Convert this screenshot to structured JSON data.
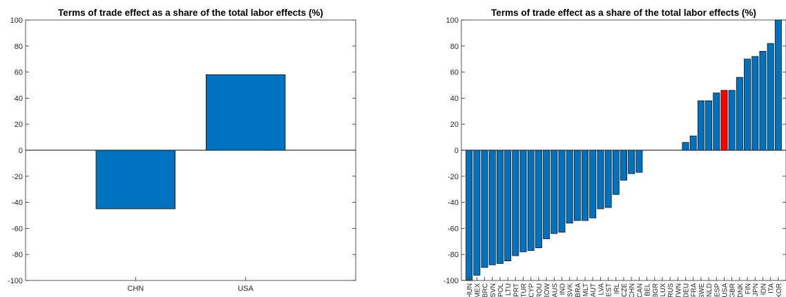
{
  "chart_data": [
    {
      "type": "bar",
      "title": "Terms of trade effect as a share of the total labor effects (%)",
      "xlabel": "",
      "ylabel": "",
      "ylim": [
        -100,
        100
      ],
      "yticks": [
        "100",
        "80",
        "60",
        "40",
        "20",
        "0",
        "-20",
        "-40",
        "-60",
        "-80",
        "-100"
      ],
      "categories": [
        "CHN",
        "USA"
      ],
      "values": [
        -45,
        58
      ],
      "bar_color": "#0072BD"
    },
    {
      "type": "bar",
      "title": "Terms of trade effect as a share of the total labor effects (%)",
      "xlabel": "",
      "ylabel": "",
      "ylim": [
        -100,
        100
      ],
      "yticks": [
        "100",
        "80",
        "60",
        "40",
        "20",
        "0",
        "-20",
        "-40",
        "-60",
        "-80",
        "-100"
      ],
      "categories": [
        "HUN",
        "MEX",
        "BRC",
        "SVN",
        "POL",
        "LTU",
        "PRT",
        "TUR",
        "CYP",
        "ROU",
        "ROW",
        "AUS",
        "IND",
        "SVK",
        "BRA",
        "MLT",
        "AUT",
        "LVA",
        "EST",
        "IRL",
        "CZE",
        "CHN",
        "CAN",
        "BEL",
        "BGR",
        "LUX",
        "RUS",
        "TWN",
        "DEU",
        "FRA",
        "SWE",
        "NLD",
        "ESP",
        "USA",
        "GBR",
        "DNK",
        "FIN",
        "JPN",
        "IDN",
        "ITA",
        "KOR"
      ],
      "values": [
        -100,
        -96,
        -90,
        -88,
        -87,
        -85,
        -81,
        -78,
        -77,
        -75,
        -68,
        -64,
        -63,
        -56,
        -54,
        -54,
        -52,
        -45,
        -44,
        -34,
        -23,
        -18,
        -17,
        0,
        0,
        0,
        0,
        0,
        6,
        11,
        38,
        38,
        44,
        46,
        46,
        56,
        70,
        72,
        76,
        82,
        100
      ],
      "bar_color": "#0072BD",
      "highlight": {
        "category": "USA",
        "color": "#FF0000"
      }
    }
  ]
}
